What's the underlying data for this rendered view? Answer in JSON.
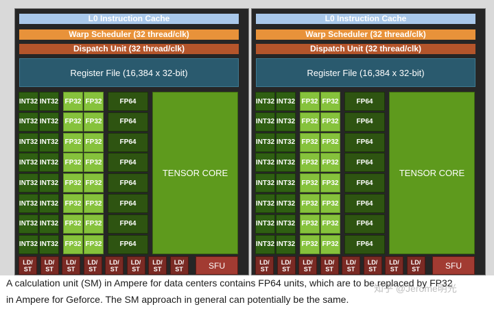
{
  "diagram": {
    "l0_cache": "L0 Instruction Cache",
    "warp_scheduler": "Warp Scheduler (32 thread/clk)",
    "dispatch_unit": "Dispatch Unit (32 thread/clk)",
    "register_file": "Register File (16,384 x 32-bit)",
    "int_label": "INT32",
    "fp32_label": "FP32",
    "fp64_label": "FP64",
    "tensor_label": "TENSOR CORE",
    "ldst_line1": "LD/",
    "ldst_line2": "ST",
    "sfu_label": "SFU",
    "rows": 8,
    "ldst_count": 8,
    "colors": {
      "l0_cache": "#a9c8ea",
      "warp_scheduler": "#e8923a",
      "dispatch_unit": "#b4552b",
      "register_file": "#2a5a6e",
      "int32": "#2f5f12",
      "fp32": "#86c23c",
      "fp64": "#2e5411",
      "tensor": "#5e9a1d",
      "ldst": "#7a2a24",
      "sfu": "#a23b32"
    }
  },
  "caption": {
    "line1": "A calculation unit (SM) in Ampere for data centers contains FP64 units, which are to be replaced by FP32",
    "line2": "in Ampere for Geforce. The SM approach in general can potentially be the same."
  },
  "watermark": "知乎 @Jerome明光"
}
